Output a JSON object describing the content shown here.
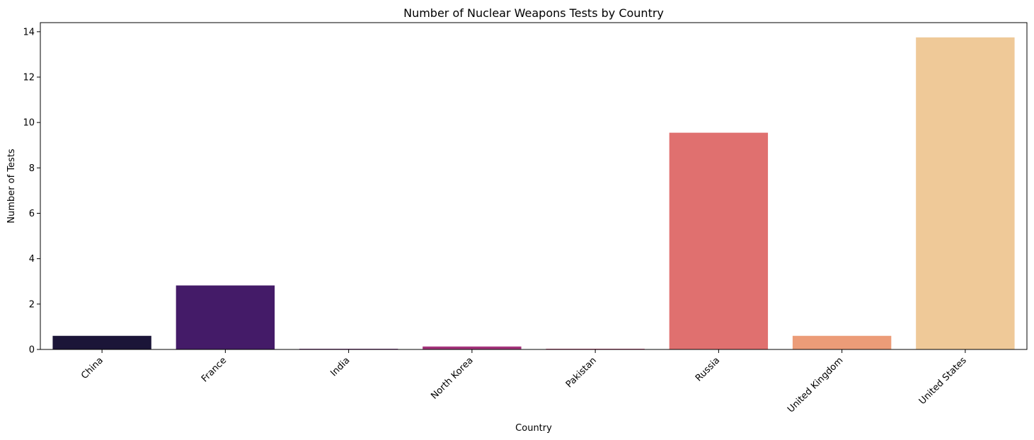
{
  "chart_data": {
    "type": "bar",
    "title": "Number of Nuclear Weapons Tests by Country",
    "xlabel": "Country",
    "ylabel": "Number of Tests",
    "categories": [
      "China",
      "France",
      "India",
      "North Korea",
      "Pakistan",
      "Russia",
      "United Kingdom",
      "United States"
    ],
    "values": [
      0.6,
      2.82,
      0.03,
      0.13,
      0.03,
      9.55,
      0.6,
      13.75
    ],
    "colors": [
      "#1b1538",
      "#441b68",
      "#7a2a7e",
      "#a3337a",
      "#cc4073",
      "#e0706f",
      "#ec9c78",
      "#efc998"
    ],
    "ylim": [
      0,
      14.4
    ],
    "yticks": [
      0,
      2,
      4,
      6,
      8,
      10,
      12,
      14
    ],
    "grid": false,
    "legend": "none"
  }
}
